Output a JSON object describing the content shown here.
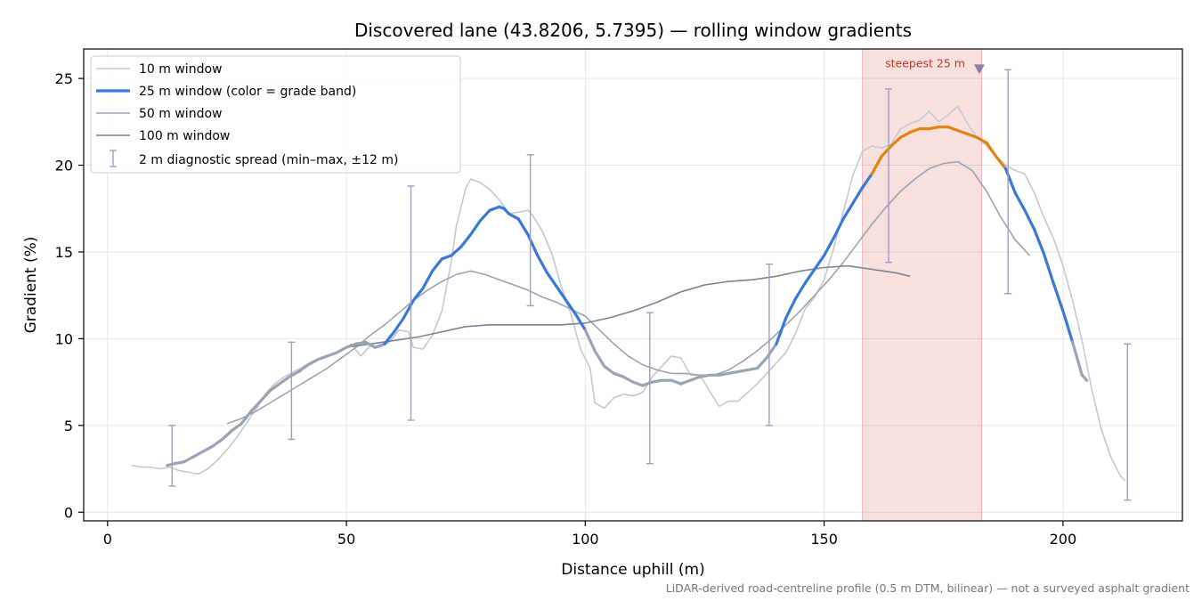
{
  "chart_data": {
    "type": "line",
    "title": "Discovered lane (43.8206, 5.7395) — rolling window gradients",
    "xlabel": "Distance uphill (m)",
    "ylabel": "Gradient (%)",
    "xlim": [
      -5,
      225
    ],
    "ylim": [
      -0.5,
      26.7
    ],
    "x_ticks": [
      0,
      50,
      100,
      150,
      200
    ],
    "y_ticks": [
      0,
      5,
      10,
      15,
      20,
      25
    ],
    "grid": true,
    "legend_position": "upper-left",
    "footnote": "LiDAR-derived road-centreline profile (0.5 m DTM, bilinear) — not a surveyed asphalt gradient",
    "highlight": {
      "x_range": [
        158,
        183
      ],
      "label": "steepest 25 m",
      "marker_x": 182.5,
      "marker_y": 25.5,
      "color": "#d9534f"
    },
    "grade_band_colors": {
      "below_10": "#98a3b3",
      "10_to_20": "#3a78d8",
      "above_20": "#e0840e"
    },
    "series": [
      {
        "name": "10 m window",
        "color": "#c3c9d3",
        "x": [
          5,
          7,
          9,
          11,
          13,
          15,
          17,
          19,
          21,
          23,
          25,
          27,
          29,
          31,
          33,
          35,
          37,
          39,
          41,
          43,
          45,
          47,
          49,
          51,
          53,
          55,
          57,
          59,
          61,
          63,
          64,
          66,
          68,
          70,
          72,
          73,
          75,
          76,
          78,
          80,
          82,
          84,
          86,
          88,
          89,
          91,
          93,
          95,
          97,
          99,
          101,
          102,
          104,
          106,
          108,
          110,
          112,
          114,
          116,
          118,
          120,
          122,
          124,
          126,
          128,
          130,
          132,
          134,
          136,
          138,
          140,
          142,
          144,
          146,
          148,
          150,
          152,
          154,
          156,
          158,
          160,
          162,
          164,
          166,
          168,
          170,
          172,
          174,
          176,
          178,
          180,
          182,
          184,
          186,
          188,
          190,
          192,
          194,
          196,
          198,
          200,
          202,
          204,
          206,
          208,
          210,
          212,
          213
        ],
        "y": [
          2.7,
          2.6,
          2.6,
          2.5,
          2.6,
          2.4,
          2.3,
          2.2,
          2.5,
          3.0,
          3.6,
          4.3,
          5.1,
          5.9,
          6.8,
          7.4,
          7.8,
          8.1,
          8.4,
          8.7,
          8.9,
          9.1,
          9.3,
          9.7,
          9.0,
          9.6,
          9.5,
          9.8,
          10.5,
          10.4,
          9.5,
          9.4,
          10.2,
          11.6,
          14.5,
          16.5,
          18.7,
          19.2,
          19.0,
          18.6,
          18.0,
          17.2,
          17.3,
          17.4,
          17.1,
          16.2,
          14.9,
          13.0,
          11.4,
          9.4,
          8.3,
          6.3,
          6.0,
          6.6,
          6.8,
          6.7,
          6.9,
          7.8,
          8.4,
          9.0,
          8.9,
          7.9,
          7.9,
          7.0,
          6.1,
          6.4,
          6.4,
          6.9,
          7.4,
          8.0,
          8.6,
          9.2,
          10.3,
          11.7,
          12.4,
          13.4,
          15.2,
          17.3,
          19.4,
          20.8,
          21.1,
          21.0,
          21.2,
          22.1,
          22.4,
          22.6,
          23.1,
          22.5,
          22.9,
          23.4,
          22.4,
          21.6,
          21.1,
          20.5,
          20.0,
          19.7,
          19.5,
          18.4,
          17.0,
          15.8,
          14.2,
          12.2,
          9.9,
          7.1,
          4.8,
          3.2,
          2.1,
          1.8
        ]
      },
      {
        "name": "25 m window (color = grade band)",
        "color": "#3a78d8",
        "x": [
          12.5,
          14,
          16,
          18,
          20,
          22,
          24,
          26,
          28,
          30,
          32,
          34,
          36,
          38,
          40,
          42,
          44,
          46,
          48,
          50,
          52,
          54,
          56,
          58,
          60,
          62,
          64,
          66,
          68,
          70,
          72,
          74,
          76,
          78,
          80,
          82,
          83,
          84,
          86,
          88,
          90,
          92,
          94,
          96,
          98,
          100,
          102,
          104,
          106,
          108,
          110,
          112,
          114,
          116,
          118,
          120,
          122,
          124,
          126,
          128,
          130,
          132,
          134,
          136,
          138,
          140,
          142,
          144,
          146,
          148,
          150,
          152,
          154,
          156,
          158,
          160,
          162,
          164,
          166,
          168,
          170,
          172,
          174,
          176,
          178,
          180,
          182,
          184,
          186,
          188,
          190,
          192,
          194,
          196,
          198,
          200,
          202,
          204,
          205
        ],
        "y": [
          2.7,
          2.8,
          2.9,
          3.2,
          3.5,
          3.8,
          4.2,
          4.7,
          5.1,
          5.8,
          6.4,
          7.0,
          7.4,
          7.8,
          8.1,
          8.5,
          8.8,
          9.0,
          9.2,
          9.5,
          9.7,
          9.8,
          9.5,
          9.7,
          10.4,
          11.2,
          12.2,
          12.9,
          13.9,
          14.6,
          14.8,
          15.3,
          16.0,
          16.8,
          17.4,
          17.6,
          17.5,
          17.2,
          16.9,
          16.0,
          14.8,
          13.8,
          13.0,
          12.2,
          11.4,
          10.5,
          9.3,
          8.4,
          8.0,
          7.8,
          7.5,
          7.3,
          7.5,
          7.6,
          7.6,
          7.4,
          7.6,
          7.8,
          7.9,
          7.9,
          8.0,
          8.1,
          8.2,
          8.3,
          8.9,
          9.7,
          11.2,
          12.3,
          13.2,
          14.0,
          14.8,
          15.8,
          16.9,
          17.8,
          18.7,
          19.5,
          20.5,
          21.1,
          21.6,
          21.9,
          22.1,
          22.1,
          22.2,
          22.2,
          22.0,
          21.8,
          21.6,
          21.3,
          20.5,
          19.8,
          18.4,
          17.4,
          16.3,
          14.9,
          13.2,
          11.6,
          9.8,
          7.9,
          7.6
        ]
      },
      {
        "name": "50 m window",
        "color": "#9aa4b4",
        "x": [
          25,
          28,
          31,
          34,
          37,
          40,
          43,
          46,
          49,
          52,
          55,
          58,
          61,
          64,
          67,
          70,
          73,
          76,
          79,
          82,
          85,
          88,
          91,
          94,
          97,
          100,
          103,
          106,
          109,
          112,
          115,
          118,
          121,
          124,
          127,
          130,
          133,
          136,
          139,
          142,
          145,
          148,
          151,
          154,
          157,
          160,
          163,
          166,
          169,
          172,
          175,
          178,
          181,
          184,
          187,
          190,
          193
        ],
        "y": [
          5.1,
          5.4,
          5.8,
          6.3,
          6.8,
          7.3,
          7.8,
          8.3,
          8.9,
          9.5,
          10.2,
          10.8,
          11.5,
          12.2,
          12.8,
          13.3,
          13.7,
          13.9,
          13.7,
          13.4,
          13.1,
          12.8,
          12.4,
          12.1,
          11.7,
          11.3,
          10.5,
          9.7,
          9.0,
          8.5,
          8.2,
          8.0,
          8.0,
          7.9,
          7.9,
          8.2,
          8.7,
          9.3,
          10.0,
          10.8,
          11.6,
          12.5,
          13.4,
          14.4,
          15.5,
          16.6,
          17.6,
          18.5,
          19.2,
          19.8,
          20.1,
          20.2,
          19.7,
          18.5,
          17.0,
          15.7,
          14.8
        ]
      },
      {
        "name": "100 m window",
        "color": "#7b8494",
        "x": [
          50,
          55,
          60,
          65,
          70,
          75,
          80,
          85,
          90,
          95,
          100,
          105,
          110,
          115,
          120,
          125,
          130,
          135,
          140,
          145,
          150,
          155,
          160,
          165,
          168
        ],
        "y": [
          9.5,
          9.7,
          9.9,
          10.1,
          10.4,
          10.7,
          10.8,
          10.8,
          10.8,
          10.8,
          10.9,
          11.2,
          11.6,
          12.1,
          12.7,
          13.1,
          13.3,
          13.4,
          13.6,
          13.9,
          14.1,
          14.2,
          14.0,
          13.8,
          13.6
        ]
      }
    ],
    "error_bars": {
      "name": "2 m diagnostic spread (min–max, ±12 m)",
      "color": "#a49ac6",
      "points": [
        {
          "x": 13.5,
          "low": 1.5,
          "high": 5.0
        },
        {
          "x": 38.5,
          "low": 4.2,
          "high": 9.8
        },
        {
          "x": 63.5,
          "low": 5.3,
          "high": 18.8
        },
        {
          "x": 88.5,
          "low": 11.9,
          "high": 20.6
        },
        {
          "x": 113.5,
          "low": 2.8,
          "high": 11.5
        },
        {
          "x": 138.5,
          "low": 5.0,
          "high": 14.3
        },
        {
          "x": 163.5,
          "low": 14.4,
          "high": 24.4
        },
        {
          "x": 188.5,
          "low": 12.6,
          "high": 25.5
        },
        {
          "x": 213.5,
          "low": 0.7,
          "high": 9.7
        }
      ]
    }
  }
}
